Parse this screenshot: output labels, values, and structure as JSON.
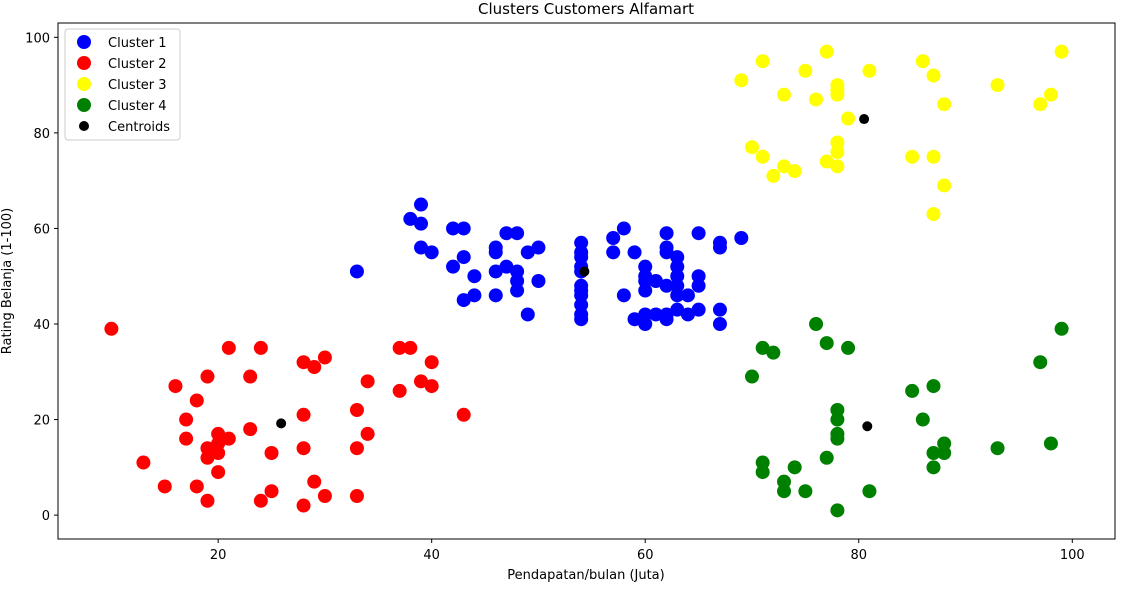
{
  "chart_data": {
    "type": "scatter",
    "title": "Clusters Customers Alfamart",
    "xlabel": "Pendapatan/bulan (Juta)",
    "ylabel": "Rating Belanja (1-100)",
    "xlim": [
      5,
      104
    ],
    "ylim": [
      -5,
      103
    ],
    "xticks": [
      20,
      40,
      60,
      80,
      100
    ],
    "yticks": [
      0,
      20,
      40,
      60,
      80,
      100
    ],
    "grid": false,
    "legend_position": "top-left",
    "series": [
      {
        "name": "Cluster 1",
        "color": "#0000ff",
        "points": [
          [
            33,
            51
          ],
          [
            38,
            62
          ],
          [
            39,
            65
          ],
          [
            39,
            61
          ],
          [
            39,
            56
          ],
          [
            40,
            55
          ],
          [
            42,
            52
          ],
          [
            42,
            60
          ],
          [
            43,
            60
          ],
          [
            43,
            54
          ],
          [
            43,
            45
          ],
          [
            44,
            46
          ],
          [
            44,
            50
          ],
          [
            46,
            56
          ],
          [
            46,
            55
          ],
          [
            46,
            51
          ],
          [
            46,
            46
          ],
          [
            47,
            59
          ],
          [
            47,
            52
          ],
          [
            48,
            59
          ],
          [
            48,
            51
          ],
          [
            48,
            49
          ],
          [
            48,
            47
          ],
          [
            49,
            55
          ],
          [
            49,
            42
          ],
          [
            50,
            56
          ],
          [
            50,
            49
          ],
          [
            54,
            57
          ],
          [
            54,
            55
          ],
          [
            54,
            54
          ],
          [
            54,
            52
          ],
          [
            54,
            51
          ],
          [
            54,
            48
          ],
          [
            54,
            47
          ],
          [
            54,
            46
          ],
          [
            54,
            44
          ],
          [
            54,
            42
          ],
          [
            54,
            41
          ],
          [
            57,
            58
          ],
          [
            57,
            55
          ],
          [
            58,
            60
          ],
          [
            58,
            46
          ],
          [
            59,
            55
          ],
          [
            59,
            41
          ],
          [
            60,
            52
          ],
          [
            60,
            50
          ],
          [
            60,
            49
          ],
          [
            60,
            47
          ],
          [
            60,
            42
          ],
          [
            60,
            40
          ],
          [
            61,
            49
          ],
          [
            61,
            42
          ],
          [
            62,
            59
          ],
          [
            62,
            56
          ],
          [
            62,
            55
          ],
          [
            62,
            48
          ],
          [
            62,
            42
          ],
          [
            62,
            41
          ],
          [
            63,
            54
          ],
          [
            63,
            52
          ],
          [
            63,
            50
          ],
          [
            63,
            48
          ],
          [
            63,
            46
          ],
          [
            63,
            43
          ],
          [
            64,
            46
          ],
          [
            64,
            42
          ],
          [
            65,
            59
          ],
          [
            65,
            50
          ],
          [
            65,
            48
          ],
          [
            65,
            43
          ],
          [
            67,
            57
          ],
          [
            67,
            56
          ],
          [
            67,
            43
          ],
          [
            67,
            40
          ],
          [
            69,
            58
          ]
        ]
      },
      {
        "name": "Cluster 2",
        "color": "#ff0000",
        "points": [
          [
            10,
            39
          ],
          [
            13,
            11
          ],
          [
            15,
            6
          ],
          [
            16,
            27
          ],
          [
            17,
            20
          ],
          [
            17,
            16
          ],
          [
            18,
            24
          ],
          [
            18,
            6
          ],
          [
            19,
            29
          ],
          [
            19,
            14
          ],
          [
            19,
            12
          ],
          [
            19,
            3
          ],
          [
            20,
            17
          ],
          [
            20,
            15
          ],
          [
            20,
            13
          ],
          [
            20,
            9
          ],
          [
            21,
            35
          ],
          [
            21,
            16
          ],
          [
            23,
            29
          ],
          [
            23,
            18
          ],
          [
            24,
            35
          ],
          [
            24,
            3
          ],
          [
            25,
            13
          ],
          [
            25,
            5
          ],
          [
            28,
            32
          ],
          [
            28,
            21
          ],
          [
            28,
            14
          ],
          [
            28,
            2
          ],
          [
            29,
            31
          ],
          [
            29,
            7
          ],
          [
            30,
            33
          ],
          [
            30,
            4
          ],
          [
            33,
            22
          ],
          [
            33,
            14
          ],
          [
            33,
            4
          ],
          [
            34,
            28
          ],
          [
            34,
            17
          ],
          [
            37,
            35
          ],
          [
            37,
            26
          ],
          [
            38,
            35
          ],
          [
            39,
            28
          ],
          [
            40,
            32
          ],
          [
            40,
            27
          ],
          [
            43,
            21
          ]
        ]
      },
      {
        "name": "Cluster 3",
        "color": "#ffff00",
        "points": [
          [
            69,
            91
          ],
          [
            70,
            77
          ],
          [
            71,
            95
          ],
          [
            71,
            75
          ],
          [
            72,
            71
          ],
          [
            73,
            88
          ],
          [
            73,
            73
          ],
          [
            74,
            72
          ],
          [
            75,
            93
          ],
          [
            76,
            87
          ],
          [
            77,
            97
          ],
          [
            77,
            74
          ],
          [
            78,
            90
          ],
          [
            78,
            89
          ],
          [
            78,
            88
          ],
          [
            78,
            78
          ],
          [
            78,
            76
          ],
          [
            78,
            73
          ],
          [
            79,
            83
          ],
          [
            81,
            93
          ],
          [
            85,
            75
          ],
          [
            86,
            95
          ],
          [
            87,
            92
          ],
          [
            87,
            75
          ],
          [
            87,
            63
          ],
          [
            88,
            86
          ],
          [
            88,
            69
          ],
          [
            93,
            90
          ],
          [
            97,
            86
          ],
          [
            98,
            88
          ],
          [
            99,
            97
          ]
        ]
      },
      {
        "name": "Cluster 4",
        "color": "#008000",
        "points": [
          [
            70,
            29
          ],
          [
            71,
            35
          ],
          [
            71,
            11
          ],
          [
            71,
            9
          ],
          [
            72,
            34
          ],
          [
            73,
            7
          ],
          [
            73,
            5
          ],
          [
            74,
            10
          ],
          [
            75,
            5
          ],
          [
            76,
            40
          ],
          [
            77,
            36
          ],
          [
            77,
            12
          ],
          [
            78,
            22
          ],
          [
            78,
            20
          ],
          [
            78,
            17
          ],
          [
            78,
            16
          ],
          [
            78,
            1
          ],
          [
            79,
            35
          ],
          [
            81,
            5
          ],
          [
            85,
            26
          ],
          [
            86,
            20
          ],
          [
            87,
            27
          ],
          [
            87,
            13
          ],
          [
            87,
            10
          ],
          [
            88,
            15
          ],
          [
            88,
            13
          ],
          [
            93,
            14
          ],
          [
            97,
            32
          ],
          [
            98,
            15
          ],
          [
            99,
            39
          ]
        ]
      },
      {
        "name": "Centroids",
        "color": "#000000",
        "points": [
          [
            54.3,
            51
          ],
          [
            25.9,
            19.2
          ],
          [
            80.5,
            82.9
          ],
          [
            80.8,
            18.6
          ]
        ]
      }
    ]
  }
}
